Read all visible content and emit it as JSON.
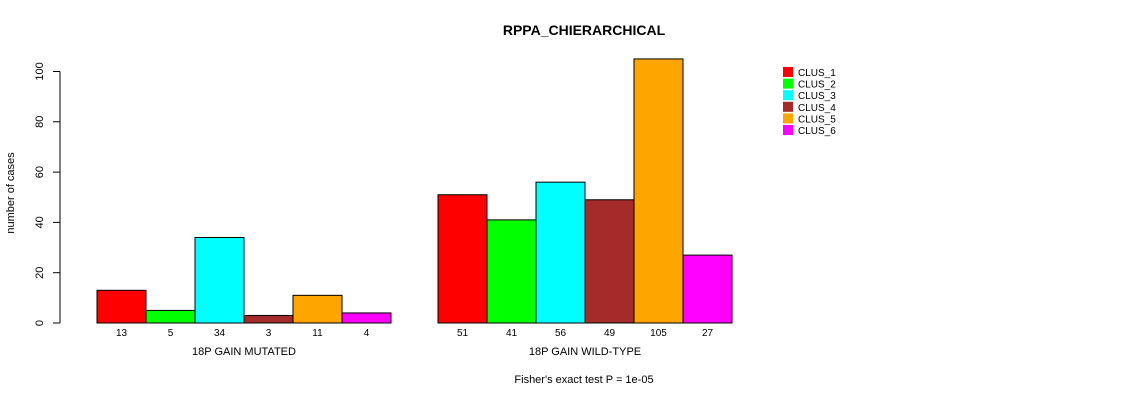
{
  "chart_data": {
    "type": "bar",
    "title": "RPPA_CHIERARCHICAL",
    "xlabel": "Fisher's exact test P = 1e-05",
    "ylabel": "number of cases",
    "ylim": [
      0,
      105
    ],
    "yticks": [
      0,
      20,
      40,
      60,
      80,
      100
    ],
    "grid": false,
    "legend_position": "top-right",
    "clusters": [
      {
        "name": "CLUS_1",
        "color": "#FF0000"
      },
      {
        "name": "CLUS_2",
        "color": "#00FF00"
      },
      {
        "name": "CLUS_3",
        "color": "#00FFFF"
      },
      {
        "name": "CLUS_4",
        "color": "#A52A2A"
      },
      {
        "name": "CLUS_5",
        "color": "#FFA500"
      },
      {
        "name": "CLUS_6",
        "color": "#FF00FF"
      }
    ],
    "groups": [
      {
        "label": "18P GAIN MUTATED",
        "values": [
          13,
          5,
          34,
          3,
          11,
          4
        ]
      },
      {
        "label": "18P GAIN WILD-TYPE",
        "values": [
          51,
          41,
          56,
          49,
          105,
          27
        ]
      }
    ]
  }
}
